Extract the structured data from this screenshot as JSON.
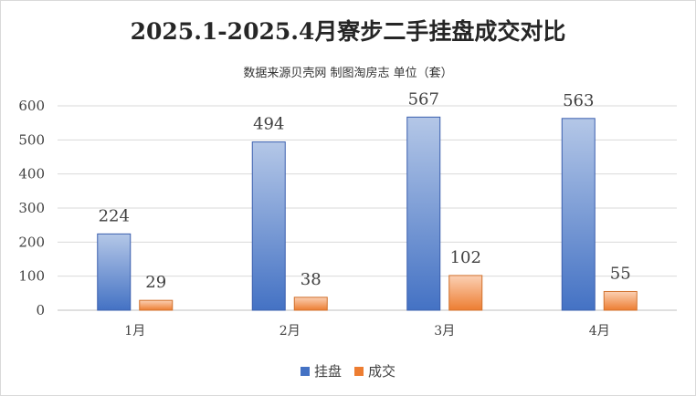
{
  "chart_data": {
    "type": "bar",
    "title": "2025.1-2025.4月寮步二手挂盘成交对比",
    "subtitle": "数据来源贝壳网 制图淘房志 单位（套）",
    "categories": [
      "1月",
      "2月",
      "3月",
      "4月"
    ],
    "series": [
      {
        "name": "挂盘",
        "values": [
          224,
          494,
          567,
          563
        ]
      },
      {
        "name": "成交",
        "values": [
          29,
          38,
          102,
          55
        ]
      }
    ],
    "ylim": [
      0,
      600
    ],
    "yticks": [
      "0",
      "100",
      "200",
      "300",
      "400",
      "500",
      "600"
    ],
    "grid": true,
    "legend_position": "bottom",
    "colors": {
      "series1_top": "#b4c7e7",
      "series1_bottom": "#4472c4",
      "series1_edge": "#3a5fae",
      "series2_top": "#fbd0b4",
      "series2_bottom": "#ed7d31",
      "series2_edge": "#d0702c"
    }
  }
}
